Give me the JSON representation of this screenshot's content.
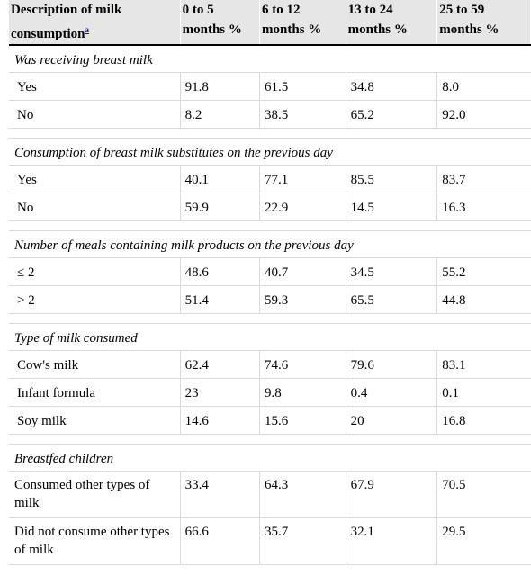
{
  "header": {
    "col0": "Description of milk consumption",
    "col0_footnote": "a",
    "col1": "0 to 5 months %",
    "col2": "6 to 12 months %",
    "col3": "13 to 24 months %",
    "col4": "25 to 59 months %"
  },
  "sections": [
    {
      "title": "Was receiving breast milk",
      "rows": [
        {
          "label": "Yes",
          "v": [
            "91.8",
            "61.5",
            "34.8",
            "8.0"
          ]
        },
        {
          "label": "No",
          "v": [
            "8.2",
            "38.5",
            "65.2",
            "92.0"
          ]
        }
      ]
    },
    {
      "title": "Consumption of breast milk substitutes on the previous day",
      "rows": [
        {
          "label": "Yes",
          "v": [
            "40.1",
            "77.1",
            "85.5",
            "83.7"
          ]
        },
        {
          "label": "No",
          "v": [
            "59.9",
            "22.9",
            "14.5",
            "16.3"
          ]
        }
      ]
    },
    {
      "title": "Number of meals containing milk products on the previous day",
      "rows": [
        {
          "label": "≤ 2",
          "v": [
            "48.6",
            "40.7",
            "34.5",
            "55.2"
          ]
        },
        {
          "label": "> 2",
          "v": [
            "51.4",
            "59.3",
            "65.5",
            "44.8"
          ]
        }
      ]
    },
    {
      "title": "Type of milk consumed",
      "rows": [
        {
          "label": "Cow's milk",
          "v": [
            "62.4",
            "74.6",
            "79.6",
            "83.1"
          ]
        },
        {
          "label": "Infant formula",
          "v": [
            "23",
            "9.8",
            "0.4",
            "0.1"
          ]
        },
        {
          "label": "Soy milk",
          "v": [
            "14.6",
            "15.6",
            "20",
            "16.8"
          ]
        }
      ]
    },
    {
      "title": "Breastfed children",
      "rows": [
        {
          "label": " Consumed other types of milk",
          "v": [
            "33.4",
            "64.3",
            "67.9",
            "70.5"
          ]
        },
        {
          "label": " Did not consume other types of milk",
          "v": [
            "66.6",
            "35.7",
            "32.1",
            "29.5"
          ]
        }
      ]
    }
  ]
}
